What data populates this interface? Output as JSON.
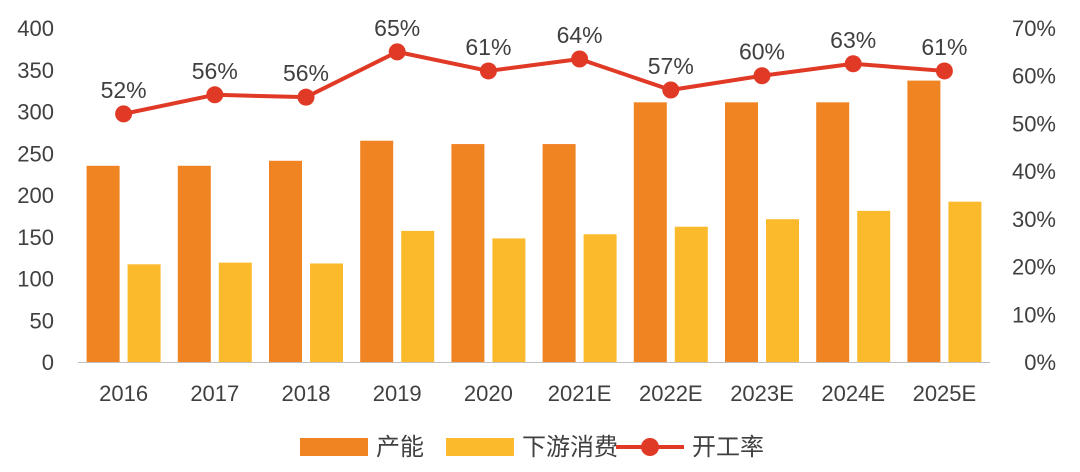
{
  "chart_data": {
    "type": "bar",
    "categories": [
      "2016",
      "2017",
      "2018",
      "2019",
      "2020",
      "2021E",
      "2022E",
      "2023E",
      "2024E",
      "2025E"
    ],
    "series": [
      {
        "name": "产能",
        "kind": "bar",
        "axis": "left",
        "color": "#F08322",
        "values": [
          235,
          235,
          241,
          265,
          261,
          261,
          311,
          311,
          311,
          337
        ]
      },
      {
        "name": "下游消费",
        "kind": "bar",
        "axis": "left",
        "color": "#FBBA2B",
        "values": [
          117,
          119,
          118,
          157,
          148,
          153,
          162,
          171,
          181,
          192
        ]
      },
      {
        "name": "开工率",
        "kind": "line",
        "axis": "right",
        "color": "#E03A27",
        "values": [
          52,
          56,
          55.5,
          65,
          61,
          63.5,
          57,
          60,
          62.5,
          61
        ],
        "labels": [
          "52%",
          "56%",
          "56%",
          "65%",
          "61%",
          "64%",
          "57%",
          "60%",
          "63%",
          "61%"
        ]
      }
    ],
    "y_left": {
      "range": [
        0,
        400
      ],
      "ticks": [
        "0",
        "50",
        "100",
        "150",
        "200",
        "250",
        "300",
        "350",
        "400"
      ]
    },
    "y_right": {
      "range": [
        0,
        70
      ],
      "ticks": [
        "0%",
        "10%",
        "20%",
        "30%",
        "40%",
        "50%",
        "60%",
        "70%"
      ]
    },
    "legend": [
      "产能",
      "下游消费",
      "开工率"
    ],
    "legend_position": "bottom",
    "grid": false
  }
}
